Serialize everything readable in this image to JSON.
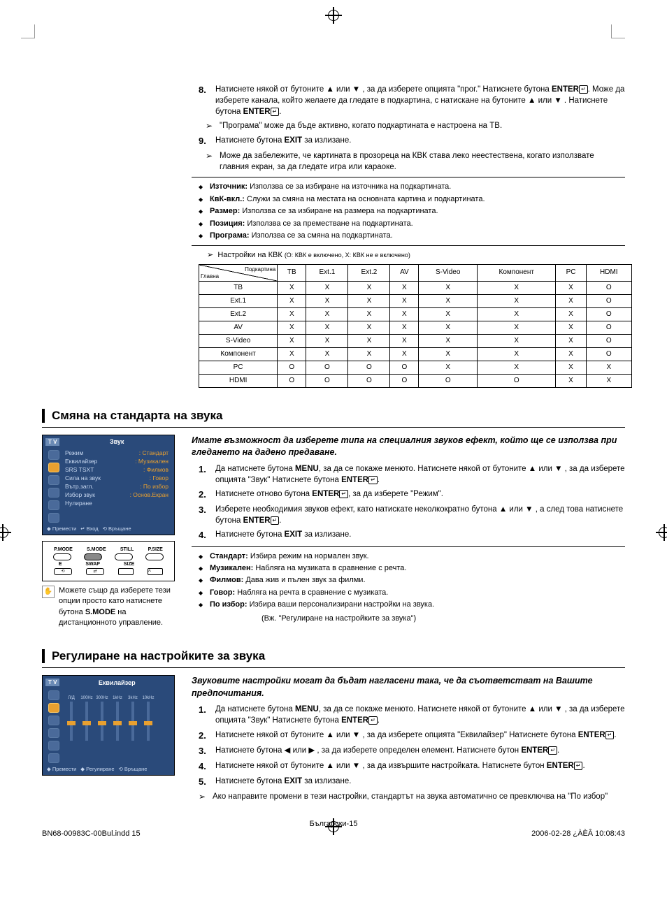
{
  "reg_marks": true,
  "steps_top": [
    {
      "n": "8.",
      "body": "Натиснете някой от бутоните ▲ или ▼ , за да изберете опцията \"прог.\" Натиснете бутона <b>ENTER</b><span class='enter-icon'>↵</span>. Може да изберете канала, който желаете да гледате в подкартина, с натискане на бутоните ▲ или ▼ . Натиснете бутона <b>ENTER</b><span class='enter-icon'>↵</span>."
    },
    {
      "n": "9.",
      "body": "Натиснете бутона <b>EXIT</b> за излизане."
    }
  ],
  "arrow_top_1": "\"Програма\" може да бъде активно, когато подкартината е настроена на ТВ.",
  "arrow_top_2": "Може да забележите, че картината в прозореца на КВК става леко неестествена, когато използвате главния екран, за да гледате игра или караоке.",
  "diamonds_top": [
    {
      "label": "Източник:",
      "text": "Използва се за избиране на източника на подкартината."
    },
    {
      "label": "КвК-вкл.:",
      "text": "Служи за смяна на местата на основната картина и подкартината."
    },
    {
      "label": "Размер:",
      "text": "Използва се за избиране на размера на подкартината."
    },
    {
      "label": "Позиция:",
      "text": "Използва се за преместване на подкартината."
    },
    {
      "label": "Програма:",
      "text": "Използва се за смяна на подкартината."
    }
  ],
  "kbk_label": "Настройки на КВК",
  "kbk_legend": "(O: КВК е включено, X: КВК не е включено)",
  "kbk_diag_top": "Подкартина",
  "kbk_diag_bottom": "Главна",
  "kbk_cols": [
    "ТВ",
    "Ext.1",
    "Ext.2",
    "AV",
    "S-Video",
    "Компонент",
    "PC",
    "HDMI"
  ],
  "kbk_rows": [
    {
      "h": "ТВ",
      "v": [
        "X",
        "X",
        "X",
        "X",
        "X",
        "X",
        "X",
        "O"
      ]
    },
    {
      "h": "Ext.1",
      "v": [
        "X",
        "X",
        "X",
        "X",
        "X",
        "X",
        "X",
        "O"
      ]
    },
    {
      "h": "Ext.2",
      "v": [
        "X",
        "X",
        "X",
        "X",
        "X",
        "X",
        "X",
        "O"
      ]
    },
    {
      "h": "AV",
      "v": [
        "X",
        "X",
        "X",
        "X",
        "X",
        "X",
        "X",
        "O"
      ]
    },
    {
      "h": "S-Video",
      "v": [
        "X",
        "X",
        "X",
        "X",
        "X",
        "X",
        "X",
        "O"
      ]
    },
    {
      "h": "Компонент",
      "v": [
        "X",
        "X",
        "X",
        "X",
        "X",
        "X",
        "X",
        "O"
      ]
    },
    {
      "h": "PC",
      "v": [
        "O",
        "O",
        "O",
        "O",
        "X",
        "X",
        "X",
        "X"
      ]
    },
    {
      "h": "HDMI",
      "v": [
        "O",
        "O",
        "O",
        "O",
        "O",
        "O",
        "X",
        "X"
      ]
    }
  ],
  "section2_title": "Смяна на стандарта на звука",
  "section2_intro": "Имате възможност да изберете типа на специалния звуков ефект, който ще се използва при гледането на дадено предаване.",
  "section2_steps": [
    {
      "n": "1.",
      "body": "Да натиснете бутона <b>MENU</b>, за да се покаже менюто. Натиснете някой от бутоните ▲ или ▼ , за да изберете опцията \"Звук\" Натиснете бутона <b>ENTER</b><span class='enter-icon'>↵</span>."
    },
    {
      "n": "2.",
      "body": "Натиснете отново бутона <b>ENTER</b><span class='enter-icon'>↵</span>, за да изберете \"Режим\"."
    },
    {
      "n": "3.",
      "body": "Изберете необходимия звуков ефект, като натискате неколкократно бутона ▲ или ▼ , а след това натиснете бутона <b>ENTER</b><span class='enter-icon'>↵</span>."
    },
    {
      "n": "4.",
      "body": "Натиснете бутона <b>EXIT</b> за излизане."
    }
  ],
  "section2_diamonds": [
    {
      "label": "Стандарт:",
      "text": "Избира режим на нормален звук."
    },
    {
      "label": "Музикален:",
      "text": "Набляга на музиката в сравнение с речта."
    },
    {
      "label": "Филмов:",
      "text": "Дава жив и пълен звук за филми."
    },
    {
      "label": "Говор:",
      "text": "Набляга на речта в сравнение с музиката."
    },
    {
      "label": "По избор:",
      "text": "Избира ваши персонализирани настройки на звука."
    }
  ],
  "section2_ref": "(Вж. \"Регулиране на настройките за звука\")",
  "osd1_title": "Звук",
  "osd1_rows": [
    {
      "l": "Режим",
      "v": ": Стандарт"
    },
    {
      "l": "Еквилайзер",
      "v": ": Музикален"
    },
    {
      "l": "SRS TSXT",
      "v": ": Филмов"
    },
    {
      "l": "Сила на звук",
      "v": ": Говор"
    },
    {
      "l": "Вътр.загл.",
      "v": ": По избор"
    },
    {
      "l": "Избор звук",
      "v": ": Основ.Екран"
    },
    {
      "l": "Нулиране",
      "v": ""
    }
  ],
  "osd1_footer": [
    "◆ Премести",
    "↵ Вход",
    "⟲ Връщане"
  ],
  "remote_labels": {
    "r1": [
      "P.MODE",
      "S.MODE",
      "STILL",
      "P.SIZE"
    ],
    "r2": [
      "E",
      "SWAP",
      "SIZE",
      ""
    ]
  },
  "remote_tip": "Можете също да изберете тези опции просто като натиснете бутона <b>S.MODE</b> на дистанционното управление.",
  "section3_title": "Регулиране на настройките за звука",
  "section3_intro": "Звуковите настройки могат да бъдат нагласени така, че да съответстват на Вашите предпочитания.",
  "section3_steps": [
    {
      "n": "1.",
      "body": "Да натиснете бутона <b>MENU</b>, за да се покаже менюто. Натиснете някой от бутоните ▲ или ▼ , за да изберете опцията \"Звук\" Натиснете бутона <b>ENTER</b><span class='enter-icon'>↵</span>."
    },
    {
      "n": "2.",
      "body": "Натиснете някой от бутоните ▲ или ▼ , за да изберете опцията \"Еквилайзер\" Натиснете бутона <b>ENTER</b><span class='enter-icon'>↵</span>."
    },
    {
      "n": "3.",
      "body": "Натиснете бутона ◀ или ▶ , за да изберете определен елемент. Натиснете бутон <b>ENTER</b><span class='enter-icon'>↵</span>."
    },
    {
      "n": "4.",
      "body": "Натиснете някой от бутоните ▲ или ▼ , за да извършите настройката. Натиснете бутон <b>ENTER</b><span class='enter-icon'>↵</span>."
    },
    {
      "n": "5.",
      "body": "Натиснете бутона <b>EXIT</b> за излизане."
    }
  ],
  "section3_arrow": "Ако направите промени в тези настройки, стандартът на звука автоматично се превключва на \"По избор\"",
  "osd2_title": "Еквилайзер",
  "osd2_labels": [
    "Л/Д",
    "100Hz",
    "300Hz",
    "1kHz",
    "3kHz",
    "10kHz"
  ],
  "osd2_handles": [
    50,
    50,
    50,
    50,
    50,
    50
  ],
  "osd2_footer": [
    "◆ Премести",
    "◆ Регулиране",
    "⟲ Връщане"
  ],
  "page_num": "Български-15",
  "footer_left": "BN68-00983C-00Bul.indd   15",
  "footer_right": "2006-02-28   ¿ÀÈÂ 10:08:43",
  "colors": {
    "osd_bg": "#2a4a7a",
    "osd_accent": "#e8a030",
    "osd_text": "#c8d8f0",
    "osd_icon": "#4a6a9a"
  }
}
